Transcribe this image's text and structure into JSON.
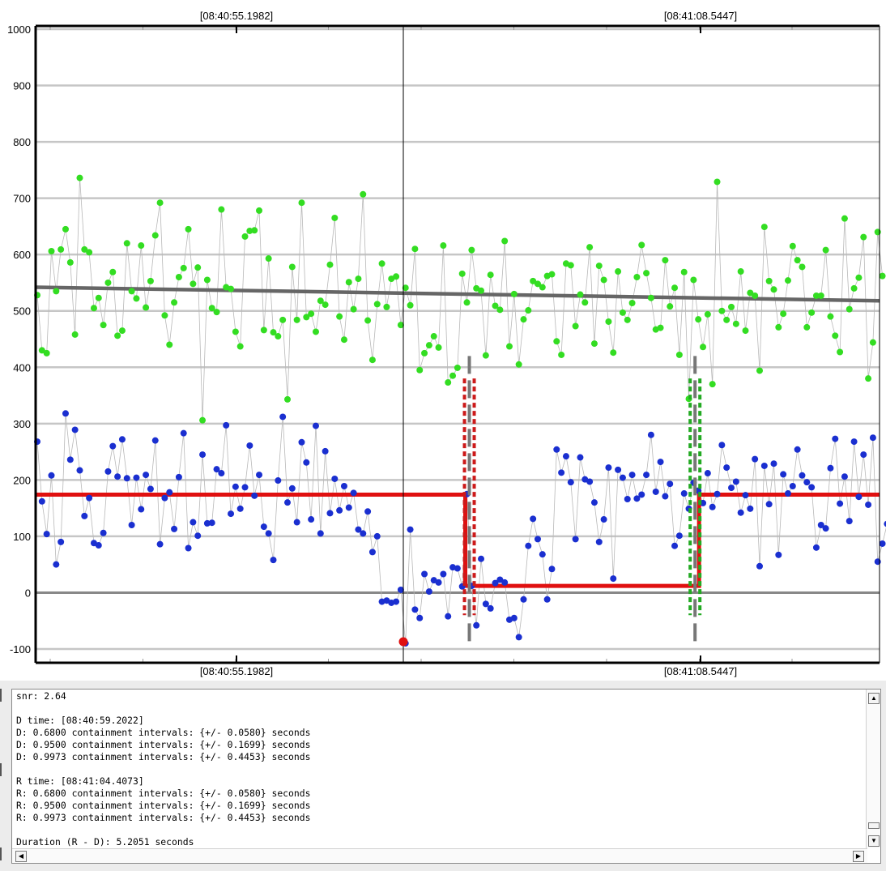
{
  "chart_data": {
    "type": "scatter",
    "ylim": [
      -100,
      1000
    ],
    "yticks": [
      -100,
      0,
      100,
      200,
      300,
      400,
      500,
      600,
      700,
      800,
      900,
      1000
    ],
    "x_time_labels": [
      "[08:40:55.1982]",
      "[08:41:08.5447]"
    ],
    "x_time_labels_bottom": [
      "[08:40:55.1982]",
      "[08:41:08.5447]"
    ],
    "colors": {
      "comparison_series": "#33dd22",
      "target_series": "#1a2fd0",
      "model_fit": "#e01010",
      "trend": "#666666",
      "d_interval": "#cc1a1a",
      "r_interval": "#22aa22",
      "edge_marker": "#777777",
      "grid": "#c6c6c6"
    },
    "series": [
      {
        "name": "",
        "color": "#33dd22",
        "values": [
          528,
          430,
          425,
          606,
          535,
          609,
          645,
          586,
          458,
          736,
          609,
          604,
          505,
          523,
          475,
          550,
          569,
          456,
          465,
          620,
          535,
          522,
          616,
          506,
          553,
          634,
          692,
          492,
          440,
          515,
          560,
          576,
          645,
          548,
          577,
          306,
          555,
          505,
          498,
          680,
          542,
          539,
          463,
          437,
          632,
          642,
          643,
          678,
          466,
          593,
          462,
          455,
          484,
          343,
          578,
          484,
          692,
          489,
          495,
          463,
          518,
          511,
          582,
          665,
          490,
          449,
          551,
          503,
          557,
          707,
          483,
          413,
          512,
          584,
          507,
          557,
          561,
          475,
          541,
          510,
          610,
          395,
          425,
          439,
          455,
          435,
          616,
          373,
          385,
          399,
          566,
          515,
          608,
          540,
          536,
          421,
          564,
          509,
          502,
          624,
          437,
          530,
          405,
          485,
          501,
          553,
          548,
          542,
          562,
          565,
          446,
          422,
          584,
          581,
          473,
          529,
          515,
          613,
          442,
          580,
          555,
          481,
          426,
          570,
          497,
          484,
          514,
          560,
          617,
          567,
          523,
          467,
          470,
          590,
          508,
          541,
          422,
          569,
          344,
          555,
          485,
          436,
          494,
          370,
          729,
          500,
          484,
          507,
          477,
          570,
          465,
          532,
          527,
          394,
          649,
          553,
          538,
          471,
          495,
          554,
          615,
          590,
          578,
          471,
          497,
          527,
          527,
          608,
          490,
          456,
          427,
          664,
          503,
          540,
          559,
          631,
          380,
          444,
          640,
          562
        ],
        "line_color": "#b8b8b8"
      },
      {
        "name": "",
        "color": "#1a2fd0",
        "values": [
          268,
          162,
          104,
          208,
          50,
          90,
          318,
          236,
          289,
          217,
          136,
          168,
          88,
          84,
          106,
          215,
          260,
          206,
          272,
          203,
          120,
          204,
          148,
          209,
          184,
          270,
          86,
          168,
          178,
          113,
          205,
          283,
          79,
          125,
          101,
          245,
          123,
          124,
          219,
          212,
          297,
          140,
          188,
          149,
          187,
          261,
          172,
          209,
          117,
          105,
          58,
          199,
          312,
          160,
          185,
          125,
          267,
          231,
          130,
          296,
          105,
          251,
          141,
          202,
          146,
          189,
          151,
          177,
          112,
          105,
          144,
          72,
          100,
          -16,
          -14,
          -18,
          -16,
          5,
          -90,
          112,
          -30,
          -45,
          33,
          2,
          22,
          18,
          33,
          -42,
          45,
          43,
          11,
          175,
          12,
          -58,
          60,
          -20,
          -28,
          17,
          23,
          18,
          -48,
          -45,
          -79,
          -12,
          83,
          131,
          95,
          68,
          -12,
          42,
          254,
          213,
          242,
          196,
          95,
          240,
          201,
          197,
          160,
          90,
          130,
          222,
          25,
          218,
          204,
          166,
          209,
          167,
          174,
          209,
          280,
          179,
          232,
          171,
          193,
          83,
          101,
          176,
          149,
          195,
          181,
          159,
          212,
          152,
          175,
          262,
          222,
          186,
          197,
          142,
          173,
          149,
          237,
          47,
          225,
          157,
          229,
          67,
          210,
          176,
          189,
          254,
          208,
          196,
          187,
          80,
          120,
          114,
          221,
          273,
          158,
          206,
          127,
          268,
          170,
          245,
          156,
          275,
          55,
          87,
          122
        ],
        "line_color": "#b8b8b8"
      }
    ],
    "model": {
      "baseline_left": 174,
      "baseline_right": 174,
      "event_level": 12,
      "d_index": 91,
      "r_index": 140,
      "d_time": "[08:40:59.2022]",
      "r_time": "[08:41:04.4073]"
    },
    "trend": {
      "start": 542,
      "end": 518
    },
    "cursor": {
      "index": 98,
      "marker_value": -87,
      "marker_color": "#e01010"
    },
    "grid": true
  },
  "log": {
    "lines": [
      "snr: 2.64",
      "",
      "D time: [08:40:59.2022]",
      "D: 0.6800 containment intervals: {+/- 0.0580} seconds",
      "D: 0.9500 containment intervals: {+/- 0.1699} seconds",
      "D: 0.9973 containment intervals: {+/- 0.4453} seconds",
      "",
      "R time: [08:41:04.4073]",
      "R: 0.6800 containment intervals: {+/- 0.0580} seconds",
      "R: 0.9500 containment intervals: {+/- 0.1699} seconds",
      "R: 0.9973 containment intervals: {+/- 0.4453} seconds",
      "",
      "Duration (R - D): 5.2051 seconds"
    ],
    "scroll_up_glyph": "▲",
    "scroll_down_glyph": "▼",
    "scroll_left_glyph": "◀",
    "scroll_right_glyph": "▶"
  }
}
